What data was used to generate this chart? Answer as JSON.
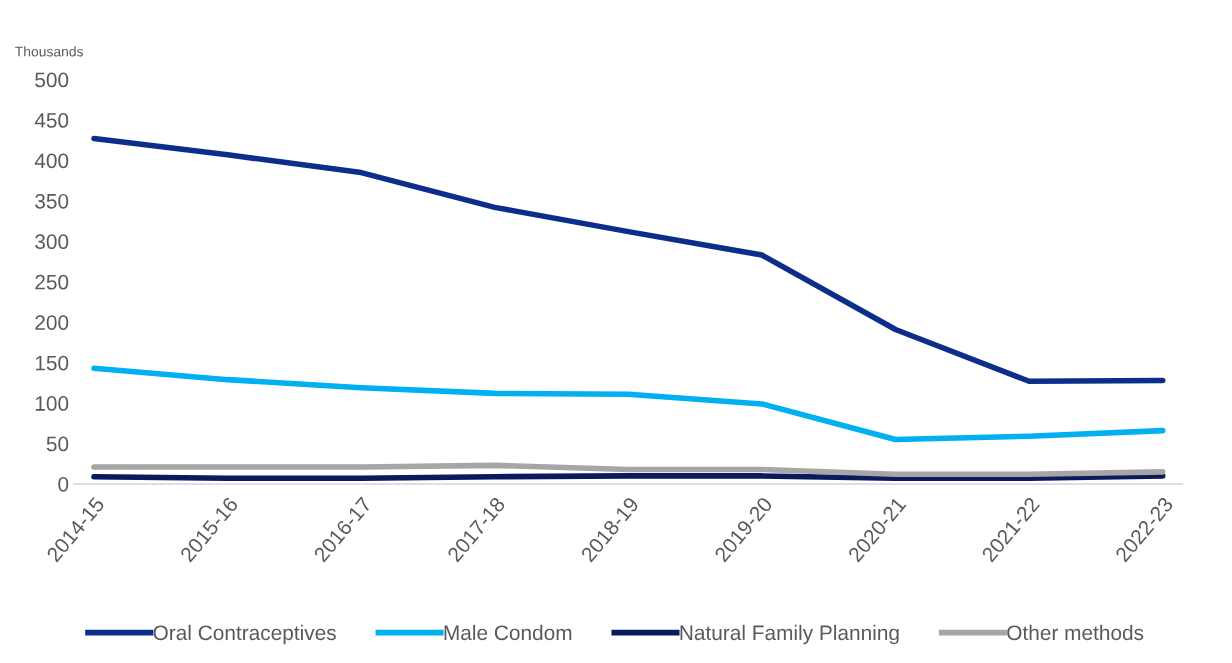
{
  "chart_data": {
    "type": "line",
    "ylabel": "Thousands",
    "categories": [
      "2014-15",
      "2015-16",
      "2016-17",
      "2017-18",
      "2018-19",
      "2019-20",
      "2020-21",
      "2021-22",
      "2022-23"
    ],
    "series": [
      {
        "name": "Oral Contraceptives",
        "color": "#0c2d8a",
        "values": [
          427,
          407,
          385,
          342,
          312,
          283,
          191,
          127,
          128
        ]
      },
      {
        "name": "Male Condom",
        "color": "#00b0f0",
        "values": [
          143,
          129,
          119,
          112,
          111,
          99,
          55,
          59,
          66
        ]
      },
      {
        "name": "Natural Family Planning",
        "color": "#0a1a5c",
        "values": [
          9,
          7,
          7,
          9,
          10,
          10,
          7,
          7,
          10
        ]
      },
      {
        "name": "Other methods",
        "color": "#a6a6a6",
        "values": [
          21,
          21,
          21,
          23,
          18,
          18,
          12,
          12,
          15
        ]
      }
    ],
    "ylim": [
      0,
      500
    ],
    "yticks": [
      0,
      50,
      100,
      150,
      200,
      250,
      300,
      350,
      400,
      450,
      500
    ],
    "grid": false,
    "legend": "bottom",
    "marker": "none",
    "line_style": "solid"
  }
}
